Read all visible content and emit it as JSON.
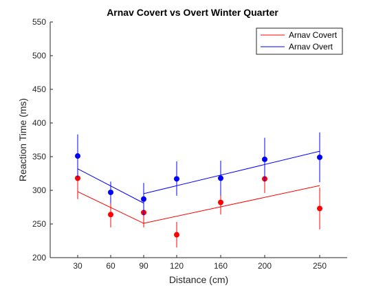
{
  "chart_data": {
    "type": "scatter",
    "title": "Arnav Covert vs Overt Winter Quarter",
    "xlabel": "Distance (cm)",
    "ylabel": "Reaction Time (ms)",
    "xlim": [
      5,
      275
    ],
    "ylim": [
      200,
      550
    ],
    "x_ticks": [
      30,
      60,
      90,
      120,
      160,
      200,
      250
    ],
    "y_ticks": [
      200,
      250,
      300,
      350,
      400,
      450,
      500,
      550
    ],
    "grid": false,
    "legend_location": "top-right",
    "series": [
      {
        "name": "Arnav Covert",
        "color": "#ff0000",
        "points": [
          {
            "x": 30,
            "y": 318,
            "err_low": 287,
            "err_high": 349
          },
          {
            "x": 60,
            "y": 264,
            "err_low": 245,
            "err_high": 283
          },
          {
            "x": 90,
            "y": 267,
            "err_low": 245,
            "err_high": 289
          },
          {
            "x": 120,
            "y": 234,
            "err_low": 215,
            "err_high": 253
          },
          {
            "x": 160,
            "y": 282,
            "err_low": 264,
            "err_high": 300
          },
          {
            "x": 200,
            "y": 317,
            "err_low": 296,
            "err_high": 338
          },
          {
            "x": 250,
            "y": 273,
            "err_low": 242,
            "err_high": 304
          }
        ],
        "fit_lines": [
          [
            [
              30,
              298
            ],
            [
              90,
              251
            ]
          ],
          [
            [
              90,
              251
            ],
            [
              250,
              307
            ]
          ]
        ]
      },
      {
        "name": "Arnav Overt",
        "color": "#0000ff",
        "points": [
          {
            "x": 30,
            "y": 351,
            "err_low": 319,
            "err_high": 383
          },
          {
            "x": 60,
            "y": 297,
            "err_low": 281,
            "err_high": 313
          },
          {
            "x": 90,
            "y": 287,
            "err_low": 262,
            "err_high": 311
          },
          {
            "x": 120,
            "y": 317,
            "err_low": 292,
            "err_high": 343
          },
          {
            "x": 160,
            "y": 318,
            "err_low": 292,
            "err_high": 344
          },
          {
            "x": 200,
            "y": 346,
            "err_low": 313,
            "err_high": 378
          },
          {
            "x": 250,
            "y": 349,
            "err_low": 312,
            "err_high": 386
          }
        ],
        "fit_lines": [
          [
            [
              30,
              332
            ],
            [
              90,
              281
            ]
          ],
          [
            [
              90,
              295
            ],
            [
              250,
              358
            ]
          ]
        ]
      }
    ]
  }
}
